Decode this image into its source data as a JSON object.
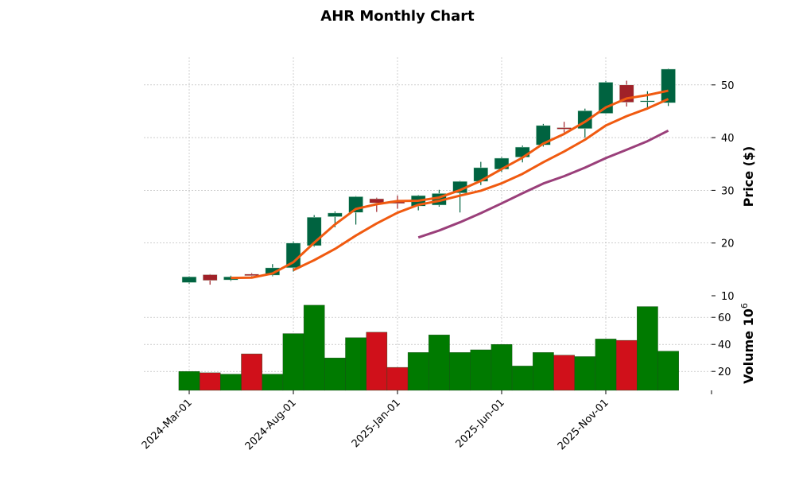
{
  "chart_data": {
    "type": "candlestick",
    "title": "AHR Monthly Chart",
    "ylabel": "Price ($)",
    "volume_label": "Volume",
    "volume_exponent": "10",
    "volume_exponent_power": "6",
    "ylim": [
      10,
      55
    ],
    "volume_ylim": [
      6,
      72
    ],
    "price_ticks": [
      "10",
      "20",
      "30",
      "40",
      "50"
    ],
    "volume_ticks": [
      "20",
      "40",
      "60"
    ],
    "x_tick_labels": [
      "2024-Mar-01",
      "2024-Aug-01",
      "2025-Jan-01",
      "2025-Jun-01",
      "2025-Nov-01"
    ],
    "x_tick_index": [
      0,
      5,
      10,
      15,
      20
    ],
    "months": [
      "2024-03",
      "2024-04",
      "2024-05",
      "2024-06",
      "2024-07",
      "2024-08",
      "2024-09",
      "2024-10",
      "2024-11",
      "2024-12",
      "2025-01",
      "2025-02",
      "2025-03",
      "2025-04",
      "2025-05",
      "2025-06",
      "2025-07",
      "2025-08",
      "2025-09",
      "2025-10",
      "2025-11",
      "2025-12",
      "2026-01",
      "2026-02"
    ],
    "open": [
      12.5,
      14.0,
      13.0,
      14.1,
      13.9,
      15.3,
      19.5,
      25.0,
      25.8,
      28.4,
      28.0,
      27.0,
      27.2,
      29.5,
      31.7,
      34.0,
      36.3,
      38.6,
      41.9,
      41.7,
      44.6,
      50.0,
      46.9,
      46.6
    ],
    "high": [
      13.7,
      14.1,
      13.8,
      14.3,
      16.0,
      20.3,
      25.3,
      26.0,
      28.9,
      28.6,
      29.0,
      29.1,
      30.1,
      31.8,
      35.4,
      36.3,
      38.5,
      42.6,
      43.0,
      45.5,
      50.7,
      50.8,
      48.8,
      53.1
    ],
    "low": [
      12.3,
      12.1,
      12.8,
      13.7,
      13.7,
      14.6,
      19.3,
      23.0,
      23.5,
      25.9,
      26.5,
      26.2,
      26.9,
      25.8,
      31.0,
      33.5,
      35.3,
      38.3,
      41.0,
      40.0,
      44.5,
      45.9,
      45.3,
      46.0
    ],
    "close": [
      13.6,
      12.9,
      13.6,
      13.8,
      15.3,
      20.0,
      24.9,
      25.7,
      28.8,
      27.6,
      27.5,
      29.0,
      29.4,
      31.7,
      34.3,
      36.1,
      38.2,
      42.3,
      41.6,
      45.1,
      50.5,
      46.7,
      47.0,
      53.0
    ],
    "volume": [
      20,
      19,
      18,
      33,
      18,
      48,
      69,
      30,
      45,
      49,
      23,
      34,
      47,
      34,
      36,
      40,
      24,
      34,
      32,
      31,
      44,
      43,
      68,
      35
    ],
    "moving_averages": [
      3,
      6,
      12
    ],
    "colors": {
      "up": "#006340",
      "down": "#a02128",
      "vol_up": "#007a00",
      "vol_down": "#d0101a",
      "ma1": "#f05a10",
      "ma2": "#f05a10",
      "ma3": "#9a3f7a",
      "grid": "#b0b0b0"
    }
  }
}
